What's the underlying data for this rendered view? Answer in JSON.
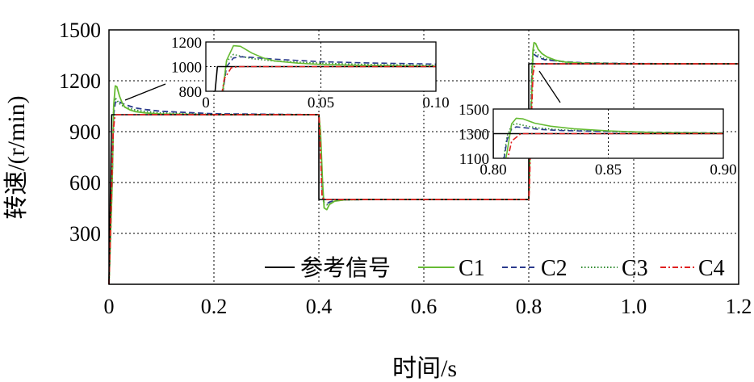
{
  "chart_data": {
    "type": "line",
    "xlabel": "时间/s",
    "ylabel": "转速/(r/min)",
    "xlim": [
      0,
      1.2
    ],
    "ylim": [
      0,
      1500
    ],
    "xticks": [
      0,
      0.2,
      0.4,
      0.6,
      0.8,
      1.0,
      1.2
    ],
    "xtick_labels": [
      "0",
      "0.2",
      "0.4",
      "0.6",
      "0.8",
      "1.0",
      "1.2"
    ],
    "yticks": [
      300,
      600,
      900,
      1200,
      1500
    ],
    "ytick_labels": [
      "300",
      "600",
      "900",
      "1200",
      "1500"
    ],
    "grid": true,
    "legend_position": "bottom-right",
    "colors": {
      "ref": "#000000",
      "C1": "#66bb33",
      "C2": "#2a3a8c",
      "C3": "#2e8b2e",
      "C4": "#e02020"
    },
    "series": [
      {
        "name": "参考信号",
        "key": "ref",
        "style": "solid",
        "x": [
          0,
          0.005,
          0.4,
          0.4,
          0.8,
          0.8,
          1.2
        ],
        "y": [
          0,
          1000,
          1000,
          500,
          500,
          1300,
          1300
        ]
      },
      {
        "name": "C1",
        "key": "C1",
        "style": "solid",
        "x": [
          0,
          0.006,
          0.009,
          0.012,
          0.015,
          0.02,
          0.025,
          0.03,
          0.04,
          0.05,
          0.07,
          0.1,
          0.2,
          0.4,
          0.403,
          0.407,
          0.41,
          0.415,
          0.42,
          0.43,
          0.45,
          0.5,
          0.6,
          0.8,
          0.803,
          0.806,
          0.808,
          0.81,
          0.813,
          0.818,
          0.825,
          0.835,
          0.85,
          0.87,
          0.9,
          1.0,
          1.2
        ],
        "y": [
          0,
          580,
          1050,
          1170,
          1165,
          1110,
          1070,
          1045,
          1028,
          1018,
          1010,
          1004,
          1000,
          1000,
          900,
          600,
          450,
          440,
          470,
          490,
          498,
          500,
          500,
          500,
          850,
          1150,
          1380,
          1425,
          1420,
          1385,
          1360,
          1340,
          1322,
          1310,
          1304,
          1300,
          1300
        ]
      },
      {
        "name": "C2",
        "key": "C2",
        "style": "dashed",
        "x": [
          0,
          0.006,
          0.009,
          0.012,
          0.015,
          0.02,
          0.03,
          0.05,
          0.07,
          0.1,
          0.2,
          0.4,
          0.404,
          0.407,
          0.41,
          0.415,
          0.42,
          0.43,
          0.45,
          0.5,
          0.6,
          0.8,
          0.803,
          0.806,
          0.808,
          0.81,
          0.815,
          0.82,
          0.83,
          0.85,
          0.87,
          0.9,
          1.0,
          1.2
        ],
        "y": [
          0,
          600,
          1000,
          1070,
          1080,
          1075,
          1060,
          1040,
          1030,
          1020,
          1005,
          1000,
          800,
          530,
          480,
          475,
          485,
          494,
          498,
          500,
          500,
          500,
          900,
          1250,
          1340,
          1355,
          1345,
          1335,
          1325,
          1318,
          1312,
          1306,
          1301,
          1300
        ]
      },
      {
        "name": "C3",
        "key": "C3",
        "style": "dotted",
        "x": [
          0,
          0.006,
          0.009,
          0.012,
          0.015,
          0.02,
          0.03,
          0.05,
          0.07,
          0.1,
          0.2,
          0.4,
          0.404,
          0.407,
          0.41,
          0.415,
          0.42,
          0.43,
          0.45,
          0.5,
          0.6,
          0.8,
          0.803,
          0.806,
          0.808,
          0.81,
          0.815,
          0.82,
          0.83,
          0.85,
          0.87,
          0.9,
          1.0,
          1.2
        ],
        "y": [
          0,
          620,
          1040,
          1100,
          1085,
          1065,
          1045,
          1028,
          1018,
          1010,
          1002,
          1000,
          780,
          520,
          470,
          468,
          480,
          492,
          498,
          500,
          500,
          500,
          900,
          1280,
          1370,
          1380,
          1360,
          1345,
          1330,
          1318,
          1310,
          1304,
          1300,
          1300
        ]
      },
      {
        "name": "C4",
        "key": "C4",
        "style": "dashdot",
        "x": [
          0,
          0.004,
          0.008,
          0.011,
          0.014,
          0.02,
          0.4,
          0.401,
          0.404,
          0.406,
          0.41,
          0.8,
          0.801,
          0.804,
          0.808,
          0.812,
          1.2
        ],
        "y": [
          0,
          450,
          900,
          990,
          1000,
          1000,
          1000,
          950,
          700,
          520,
          500,
          500,
          560,
          900,
          1240,
          1300,
          1300
        ]
      }
    ],
    "insets": [
      {
        "xlim": [
          0,
          0.1
        ],
        "ylim": [
          800,
          1200
        ],
        "xticks": [
          0,
          0.05,
          0.1
        ],
        "xtick_labels": [
          "0",
          "0.05",
          "0.10"
        ],
        "yticks": [
          800,
          1000,
          1200
        ],
        "ytick_labels": [
          "800",
          "1000",
          "1200"
        ]
      },
      {
        "xlim": [
          0.8,
          0.9
        ],
        "ylim": [
          1100,
          1500
        ],
        "xticks": [
          0.8,
          0.85,
          0.9
        ],
        "xtick_labels": [
          "0.80",
          "0.85",
          "0.90"
        ],
        "yticks": [
          1100,
          1300,
          1500
        ],
        "ytick_labels": [
          "1100",
          "1300",
          "1500"
        ]
      }
    ]
  }
}
